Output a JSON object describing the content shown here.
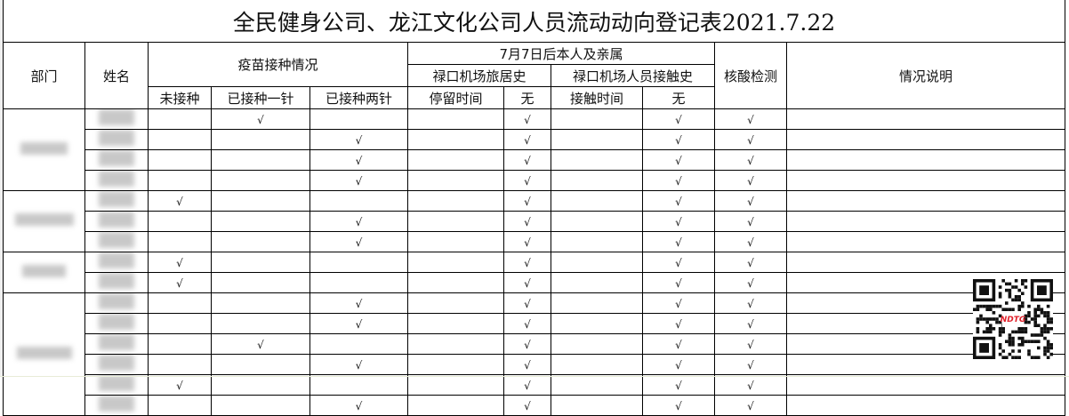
{
  "title": "全民健身公司、龙江文化公司人员流动动向登记表2021.7.22",
  "headers": {
    "department": "部门",
    "name": "姓名",
    "vaccine": "疫苗接种情况",
    "vaccine_none": "未接种",
    "vaccine_one": "已接种一针",
    "vaccine_two": "已接种两针",
    "since": "7月7日后本人及亲属",
    "airport_stay": "禄口机场旅居史",
    "stay_time": "停留时间",
    "stay_none": "无",
    "airport_contact": "禄口机场人员接触史",
    "contact_time": "接触时间",
    "contact_none": "无",
    "nucleic": "核酸检测",
    "notes": "情况说明"
  },
  "check_mark": "√",
  "department_groups": [
    {
      "rows": 4,
      "label_redacted": true
    },
    {
      "rows": 3,
      "label_redacted": true
    },
    {
      "rows": 2,
      "label_redacted": true
    },
    {
      "rows": 6,
      "label_redacted": true
    }
  ],
  "rows": [
    {
      "vaccine": "one",
      "stay_none": true,
      "contact_none": true,
      "nucleic": true
    },
    {
      "vaccine": "two",
      "stay_none": true,
      "contact_none": true,
      "nucleic": true
    },
    {
      "vaccine": "two",
      "stay_none": true,
      "contact_none": true,
      "nucleic": true
    },
    {
      "vaccine": "two",
      "stay_none": true,
      "contact_none": true,
      "nucleic": true
    },
    {
      "vaccine": "none",
      "stay_none": true,
      "contact_none": true,
      "nucleic": true
    },
    {
      "vaccine": "two",
      "stay_none": true,
      "contact_none": true,
      "nucleic": true
    },
    {
      "vaccine": "two",
      "stay_none": true,
      "contact_none": true,
      "nucleic": true
    },
    {
      "vaccine": "none",
      "stay_none": true,
      "contact_none": true,
      "nucleic": true
    },
    {
      "vaccine": "none",
      "stay_none": true,
      "contact_none": true,
      "nucleic": true
    },
    {
      "vaccine": "two",
      "stay_none": true,
      "contact_none": true,
      "nucleic": true
    },
    {
      "vaccine": "two",
      "stay_none": true,
      "contact_none": true,
      "nucleic": true
    },
    {
      "vaccine": "one",
      "stay_none": true,
      "contact_none": true,
      "nucleic": true
    },
    {
      "vaccine": "two",
      "stay_none": true,
      "contact_none": true,
      "nucleic": true
    },
    {
      "vaccine": "none",
      "stay_none": true,
      "contact_none": true,
      "nucleic": true
    },
    {
      "vaccine": "two",
      "stay_none": true,
      "contact_none": true,
      "nucleic": true
    }
  ],
  "qr_logo_text": "NDTG",
  "colors": {
    "grid": "#000000",
    "qr_logo": "#e0202a"
  }
}
